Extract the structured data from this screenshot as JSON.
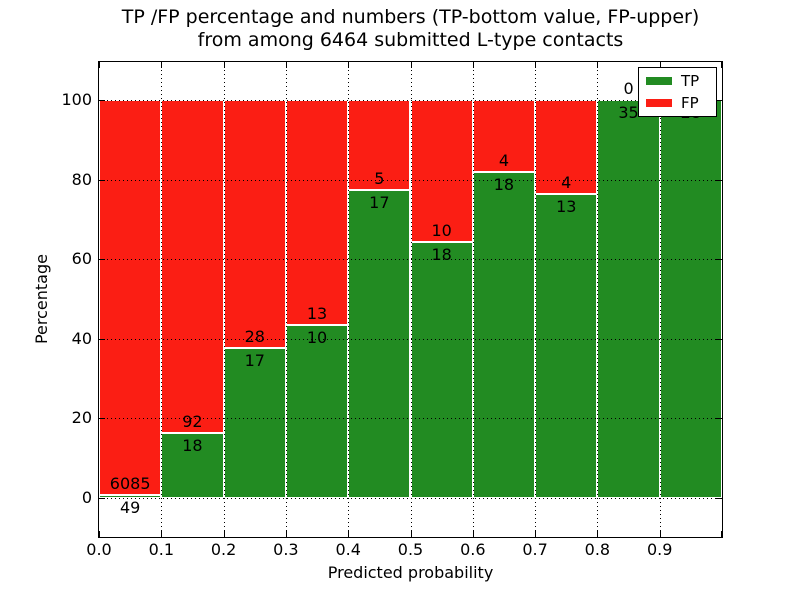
{
  "chart_data": {
    "type": "bar",
    "stacked": true,
    "title_line1": "TP /FP percentage and numbers (TP-bottom value, FP-upper)",
    "title_line2": "from among 6464 submitted L-type contacts",
    "total_contacts": 6464,
    "xlabel": "Predicted probability",
    "ylabel": "Percentage",
    "x_tick_labels": [
      "0.0",
      "0.1",
      "0.2",
      "0.3",
      "0.4",
      "0.5",
      "0.6",
      "0.7",
      "0.8",
      "0.9"
    ],
    "y_ticks": [
      0,
      20,
      40,
      60,
      80,
      100
    ],
    "xlim": [
      0.0,
      1.0
    ],
    "ylim": [
      -10,
      110
    ],
    "bin_width": 0.1,
    "categories": [
      "0.0-0.1",
      "0.1-0.2",
      "0.2-0.3",
      "0.3-0.4",
      "0.4-0.5",
      "0.5-0.6",
      "0.6-0.7",
      "0.7-0.8",
      "0.8-0.9",
      "0.9-1.0"
    ],
    "series": [
      {
        "name": "TP",
        "color": "#228b22",
        "values": [
          49,
          18,
          17,
          10,
          17,
          18,
          18,
          13,
          35,
          28
        ]
      },
      {
        "name": "FP",
        "color": "#fb1e14",
        "values": [
          6085,
          92,
          28,
          13,
          5,
          10,
          4,
          4,
          0,
          0
        ]
      }
    ],
    "grid": "dotted, on",
    "legend": {
      "position": "upper right",
      "entries": [
        {
          "label": "TP",
          "color": "#228b22"
        },
        {
          "label": "FP",
          "color": "#fb1e14"
        }
      ]
    }
  }
}
